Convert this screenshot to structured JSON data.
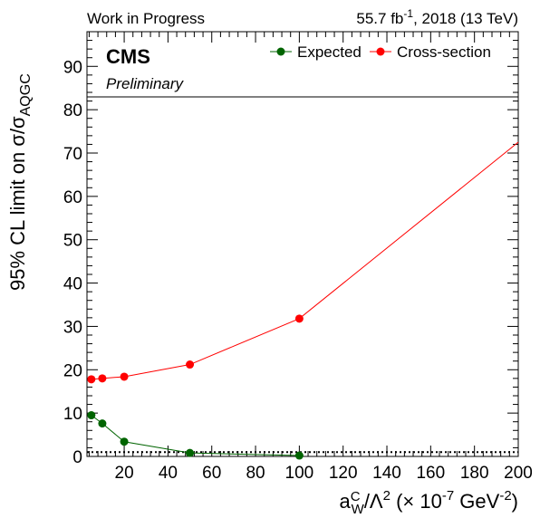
{
  "header": {
    "left": "Work in Progress",
    "lumi_value": "55.7 fb",
    "lumi_exp": "-1",
    "lumi_rest": ", 2018 (13 TeV)"
  },
  "labels": {
    "experiment": "CMS",
    "status": "Preliminary"
  },
  "axes": {
    "ylabel_prefix": "95% CL limit on  σ/σ",
    "ylabel_sub": "AQGC",
    "xlabel_a": "a",
    "xlabel_sup": "C",
    "xlabel_sub": "W",
    "xlabel_mid": "/Λ",
    "xlabel_mid_sup": "2",
    "xlabel_unit": " (× 10",
    "xlabel_unit_sup1": "-7",
    "xlabel_unit_mid": " GeV",
    "xlabel_unit_sup2": "-2",
    "xlabel_close": ")"
  },
  "chart_data": {
    "type": "line",
    "xlim": [
      3,
      200
    ],
    "ylim": [
      0,
      98
    ],
    "xticks": [
      20,
      40,
      60,
      80,
      100,
      120,
      140,
      160,
      180,
      200
    ],
    "yticks": [
      0,
      10,
      20,
      30,
      40,
      50,
      60,
      70,
      80,
      90
    ],
    "legend_position": "top-right",
    "reference_line_y": 1,
    "series": [
      {
        "name": "Expected",
        "color": "#006400",
        "x": [
          5,
          10,
          20,
          50,
          100
        ],
        "y": [
          9.5,
          7.6,
          3.4,
          0.8,
          0.2
        ],
        "extend_to": null
      },
      {
        "name": "Cross-section",
        "color": "#ff0000",
        "x": [
          5,
          10,
          20,
          50,
          100
        ],
        "y": [
          17.8,
          18.0,
          18.4,
          21.2,
          31.8
        ],
        "extend_to": [
          200,
          72.5
        ]
      }
    ]
  }
}
